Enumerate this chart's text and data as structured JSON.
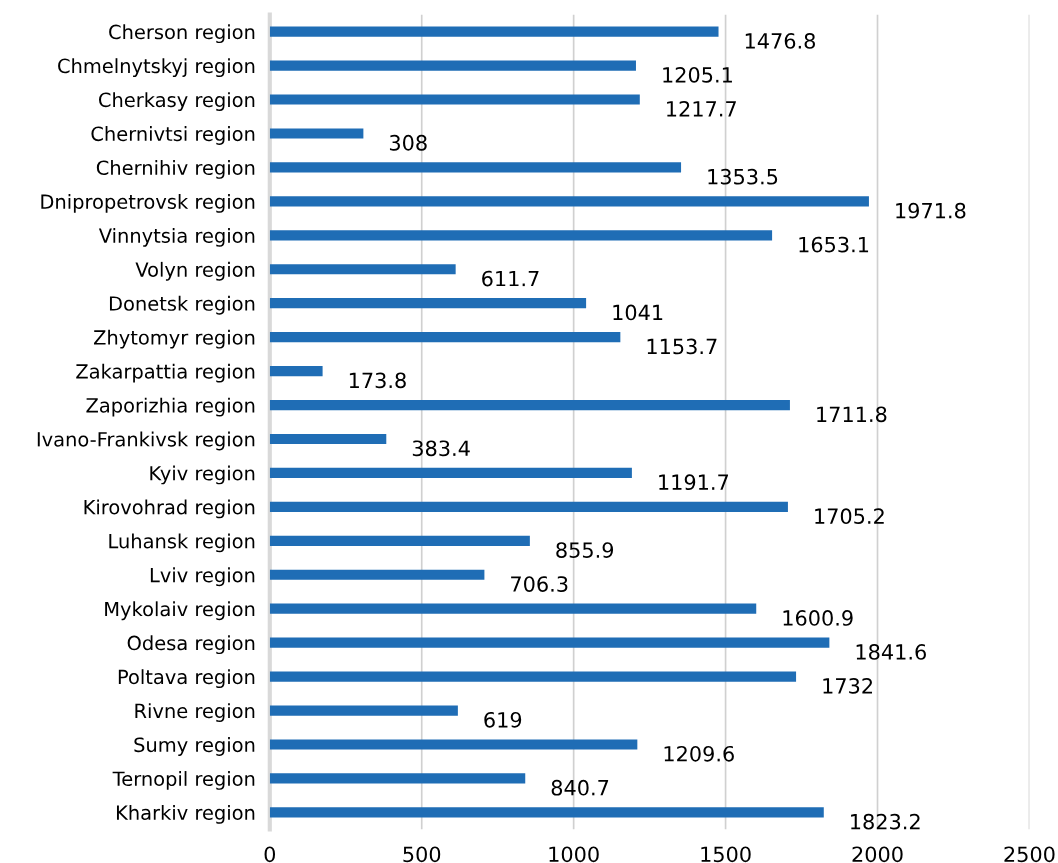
{
  "chart_data": {
    "type": "bar",
    "orientation": "horizontal",
    "categories": [
      "Cherson region",
      "Chmelnytskyj region",
      "Cherkasy region",
      "Chernivtsi region",
      "Chernihiv region",
      "Dnipropetrovsk region",
      "Vinnytsia region",
      "Volyn region",
      "Donetsk region",
      "Zhytomyr region",
      "Zakarpattia region",
      "Zaporizhia region",
      "Ivano-Frankivsk region",
      "Kyiv region",
      "Kirovohrad region",
      "Luhansk region",
      "Lviv region",
      "Mykolaiv region",
      "Odesa region",
      "Poltava region",
      "Rivne region",
      "Sumy region",
      "Ternopil region",
      "Kharkiv region"
    ],
    "values": [
      1476.8,
      1205.1,
      1217.7,
      308,
      1353.5,
      1971.8,
      1653.1,
      611.7,
      1041,
      1153.7,
      173.8,
      1711.8,
      383.4,
      1191.7,
      1705.2,
      855.9,
      706.3,
      1600.9,
      1841.6,
      1732,
      619,
      1209.6,
      840.7,
      1823.2
    ],
    "color": "#1f6db5",
    "xlim": [
      0,
      2500
    ],
    "xticks": [
      0,
      500,
      1000,
      1500,
      2000,
      2500
    ],
    "grid": "x",
    "data_labels": true
  }
}
